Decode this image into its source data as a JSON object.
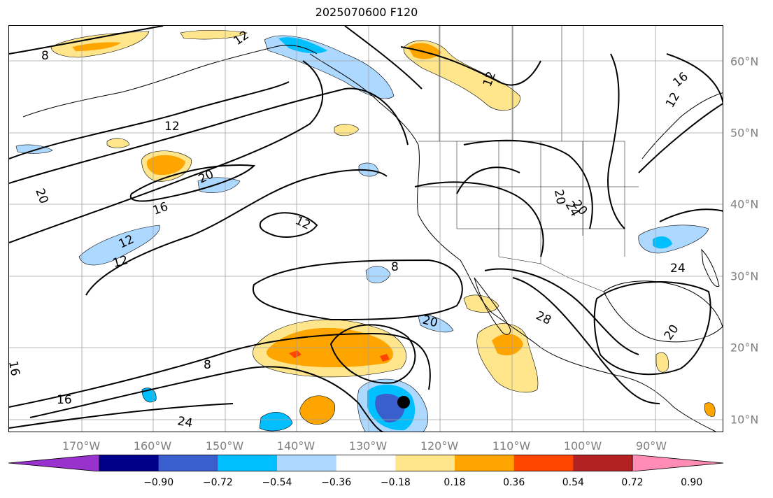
{
  "title": "2025070600 F120",
  "longitude_labels": [
    "170°W",
    "160°W",
    "150°W",
    "140°W",
    "130°W",
    "120°W",
    "110°W",
    "100°W",
    "90°W"
  ],
  "latitude_labels": [
    "60°N",
    "50°N",
    "40°N",
    "30°N",
    "20°N",
    "10°N"
  ],
  "colorbar": {
    "ticks": [
      "−0.90",
      "−0.72",
      "−0.54",
      "−0.36",
      "−0.18",
      "0.18",
      "0.36",
      "0.54",
      "0.72",
      "0.90"
    ],
    "colors": [
      "#9932cc",
      "#00008b",
      "#3a5fcd",
      "#00bfff",
      "#add8ff",
      "#ffffff",
      "#ffe68c",
      "#ffa500",
      "#ff4500",
      "#b22222",
      "#ff8cb4"
    ],
    "extend": "both"
  },
  "contour_labels": [
    "8",
    "12",
    "12",
    "12",
    "16",
    "20",
    "20",
    "12",
    "12",
    "8",
    "20",
    "28",
    "16",
    "8",
    "16",
    "24",
    "20",
    "24",
    "24",
    "16",
    "12",
    "12",
    "20",
    "20"
  ],
  "colors": {
    "grid": "#a0a0a0",
    "contour": "#000000",
    "coast": "#000000",
    "tick_label": "#7f7f7f"
  }
}
